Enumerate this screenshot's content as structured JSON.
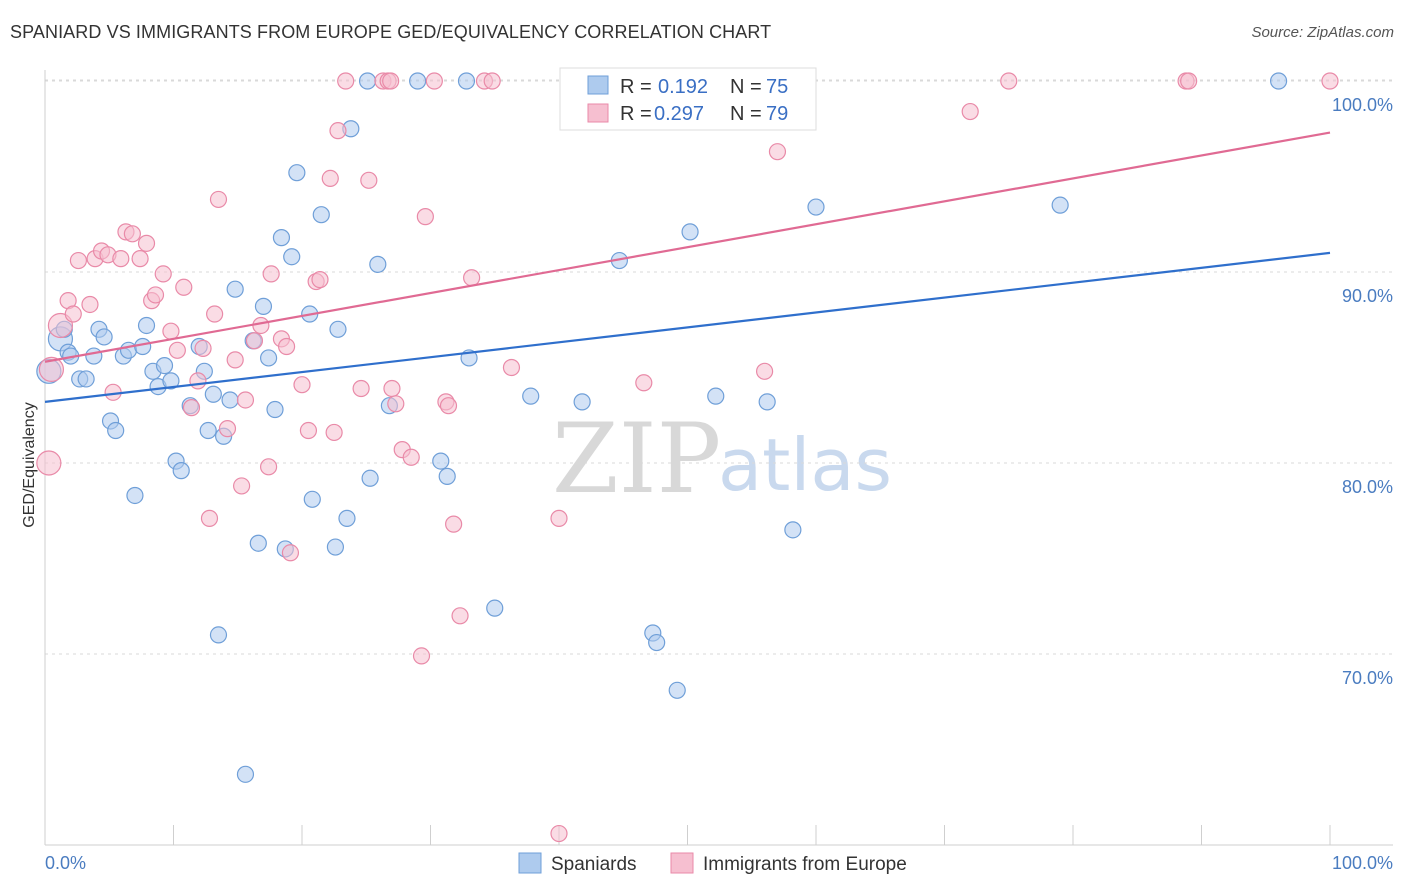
{
  "title": "SPANIARD VS IMMIGRANTS FROM EUROPE GED/EQUIVALENCY CORRELATION CHART",
  "source": "Source: ZipAtlas.com",
  "watermark": {
    "zip": "ZIP",
    "atlas": "atlas"
  },
  "colors": {
    "blue_fill": "#aecbee",
    "blue_stroke": "#6f9fd8",
    "blue_line": "#2f6fcc",
    "pink_fill": "#f6bfd0",
    "pink_stroke": "#e98aa8",
    "pink_line": "#e06a93",
    "grid": "#d9d9d9",
    "tick_text": "#4a7cc0"
  },
  "legend": {
    "r_label": "R =",
    "n_label": "N =",
    "series": [
      {
        "r": "0.192",
        "n": "75"
      },
      {
        "r": "0.297",
        "n": "79"
      }
    ]
  },
  "chart_data": {
    "type": "scatter",
    "title": "SPANIARD VS IMMIGRANTS FROM EUROPE GED/EQUIVALENCY CORRELATION CHART",
    "xlabel": "",
    "ylabel": "GED/Equivalency",
    "xlim": [
      0,
      100
    ],
    "ylim": [
      60.5,
      102.5
    ],
    "x_tick_labels": [
      "0.0%",
      "100.0%"
    ],
    "y_ticks": [
      70,
      80,
      90,
      100
    ],
    "y_tick_labels": [
      "70.0%",
      "80.0%",
      "90.0%",
      "100.0%"
    ],
    "grid": true,
    "legend_position": "top-center",
    "series": [
      {
        "name": "Spaniards",
        "color": "#aecbee",
        "trend": {
          "x": [
            0,
            100
          ],
          "y": [
            83.2,
            91.0
          ]
        },
        "points": [
          [
            0.3,
            84.8
          ],
          [
            1.2,
            86.5
          ],
          [
            1.5,
            87.0
          ],
          [
            1.8,
            85.8
          ],
          [
            2.0,
            85.6
          ],
          [
            2.7,
            84.4
          ],
          [
            3.2,
            84.4
          ],
          [
            3.8,
            85.6
          ],
          [
            4.2,
            87.0
          ],
          [
            4.6,
            86.6
          ],
          [
            5.1,
            82.2
          ],
          [
            5.5,
            81.7
          ],
          [
            6.1,
            85.6
          ],
          [
            6.5,
            85.9
          ],
          [
            7.0,
            78.3
          ],
          [
            7.6,
            86.1
          ],
          [
            7.9,
            87.2
          ],
          [
            8.4,
            84.8
          ],
          [
            8.8,
            84.0
          ],
          [
            9.3,
            85.1
          ],
          [
            9.8,
            84.3
          ],
          [
            10.2,
            80.1
          ],
          [
            10.6,
            79.6
          ],
          [
            11.3,
            83.0
          ],
          [
            12.0,
            86.1
          ],
          [
            12.4,
            84.8
          ],
          [
            12.7,
            81.7
          ],
          [
            13.1,
            83.6
          ],
          [
            13.5,
            71.0
          ],
          [
            13.9,
            81.4
          ],
          [
            14.4,
            83.3
          ],
          [
            14.8,
            89.1
          ],
          [
            15.6,
            63.7
          ],
          [
            16.2,
            86.4
          ],
          [
            16.6,
            75.8
          ],
          [
            17.0,
            88.2
          ],
          [
            17.4,
            85.5
          ],
          [
            17.9,
            82.8
          ],
          [
            18.4,
            91.8
          ],
          [
            18.7,
            75.5
          ],
          [
            19.2,
            90.8
          ],
          [
            19.6,
            95.2
          ],
          [
            20.6,
            87.8
          ],
          [
            20.8,
            78.1
          ],
          [
            21.5,
            93.0
          ],
          [
            22.6,
            75.6
          ],
          [
            22.8,
            87.0
          ],
          [
            23.5,
            77.1
          ],
          [
            23.8,
            97.5
          ],
          [
            25.1,
            100.0
          ],
          [
            25.3,
            79.2
          ],
          [
            25.9,
            90.4
          ],
          [
            26.8,
            83.0
          ],
          [
            29.0,
            100.0
          ],
          [
            30.8,
            80.1
          ],
          [
            31.3,
            79.3
          ],
          [
            32.8,
            100.0
          ],
          [
            33.0,
            85.5
          ],
          [
            35.0,
            72.4
          ],
          [
            37.8,
            83.5
          ],
          [
            41.5,
            100.0
          ],
          [
            41.8,
            83.2
          ],
          [
            44.5,
            99.0
          ],
          [
            44.7,
            90.6
          ],
          [
            47.3,
            71.1
          ],
          [
            47.6,
            70.6
          ],
          [
            49.0,
            100.0
          ],
          [
            49.2,
            68.1
          ],
          [
            50.2,
            92.1
          ],
          [
            52.2,
            83.5
          ],
          [
            56.2,
            83.2
          ],
          [
            58.2,
            76.5
          ],
          [
            60.0,
            93.4
          ],
          [
            79.0,
            93.5
          ],
          [
            96.0,
            100.0
          ]
        ]
      },
      {
        "name": "Immigrants from Europe",
        "color": "#f6bfd0",
        "trend": {
          "x": [
            0,
            100
          ],
          "y": [
            85.3,
            97.3
          ]
        },
        "points": [
          [
            0.3,
            80.0
          ],
          [
            0.5,
            84.9
          ],
          [
            1.2,
            87.2
          ],
          [
            1.8,
            88.5
          ],
          [
            2.2,
            87.8
          ],
          [
            2.6,
            90.6
          ],
          [
            3.5,
            88.3
          ],
          [
            3.9,
            90.7
          ],
          [
            4.4,
            91.1
          ],
          [
            4.9,
            90.9
          ],
          [
            5.3,
            83.7
          ],
          [
            5.9,
            90.7
          ],
          [
            6.3,
            92.1
          ],
          [
            6.8,
            92.0
          ],
          [
            7.4,
            90.7
          ],
          [
            7.9,
            91.5
          ],
          [
            8.3,
            88.5
          ],
          [
            8.6,
            88.8
          ],
          [
            9.2,
            89.9
          ],
          [
            9.8,
            86.9
          ],
          [
            10.3,
            85.9
          ],
          [
            10.8,
            89.2
          ],
          [
            11.4,
            82.9
          ],
          [
            11.9,
            84.3
          ],
          [
            12.3,
            86.0
          ],
          [
            12.8,
            77.1
          ],
          [
            13.2,
            87.8
          ],
          [
            13.5,
            93.8
          ],
          [
            14.2,
            81.8
          ],
          [
            14.8,
            85.4
          ],
          [
            15.3,
            78.8
          ],
          [
            15.6,
            83.3
          ],
          [
            16.3,
            86.4
          ],
          [
            16.8,
            87.2
          ],
          [
            17.4,
            79.8
          ],
          [
            17.6,
            89.9
          ],
          [
            18.4,
            86.5
          ],
          [
            18.8,
            86.1
          ],
          [
            19.1,
            75.3
          ],
          [
            20.0,
            84.1
          ],
          [
            20.5,
            81.7
          ],
          [
            21.1,
            89.5
          ],
          [
            21.4,
            89.6
          ],
          [
            22.2,
            94.9
          ],
          [
            22.5,
            81.6
          ],
          [
            22.8,
            97.4
          ],
          [
            23.4,
            100.0
          ],
          [
            24.6,
            83.9
          ],
          [
            25.2,
            94.8
          ],
          [
            26.3,
            100.0
          ],
          [
            26.7,
            100.0
          ],
          [
            26.9,
            100.0
          ],
          [
            27.0,
            83.9
          ],
          [
            27.3,
            83.1
          ],
          [
            27.8,
            80.7
          ],
          [
            28.5,
            80.3
          ],
          [
            29.3,
            69.9
          ],
          [
            29.6,
            92.9
          ],
          [
            30.3,
            100.0
          ],
          [
            31.2,
            83.2
          ],
          [
            31.4,
            83.0
          ],
          [
            31.8,
            76.8
          ],
          [
            32.3,
            72.0
          ],
          [
            33.2,
            89.7
          ],
          [
            34.2,
            100.0
          ],
          [
            34.8,
            100.0
          ],
          [
            36.3,
            85.0
          ],
          [
            40.0,
            77.1
          ],
          [
            40.0,
            60.6
          ],
          [
            46.6,
            84.2
          ],
          [
            47.6,
            100.0
          ],
          [
            48.3,
            100.0
          ],
          [
            56.0,
            84.8
          ],
          [
            57.0,
            96.3
          ],
          [
            72.0,
            98.4
          ],
          [
            75.0,
            100.0
          ],
          [
            88.8,
            100.0
          ],
          [
            89.0,
            100.0
          ],
          [
            100.0,
            100.0
          ]
        ]
      }
    ]
  }
}
